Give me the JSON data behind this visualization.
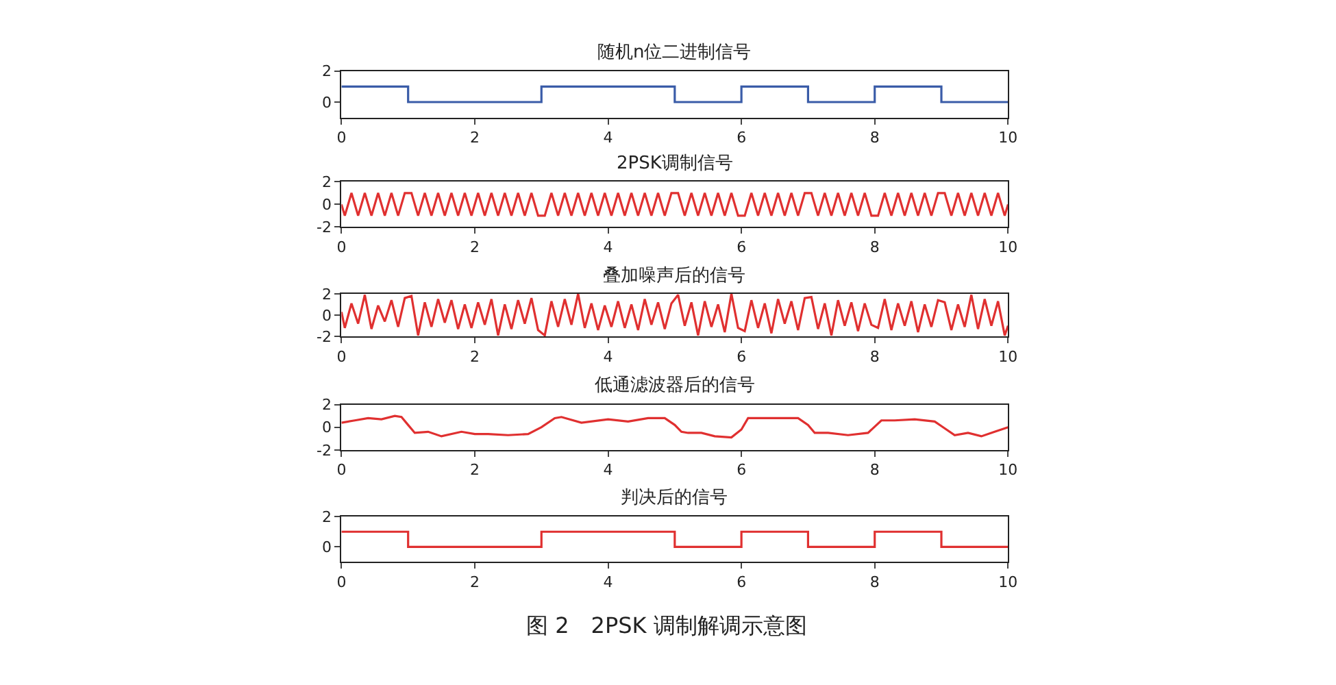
{
  "chart_data": [
    {
      "type": "step",
      "title": "随机n位二进制信号",
      "x": [
        0,
        1,
        2,
        3,
        4,
        5,
        6,
        7,
        8,
        9,
        10
      ],
      "series": [
        {
          "color": "#3a5ca8",
          "values": [
            1,
            0,
            0,
            1,
            1,
            0,
            1,
            0,
            1,
            0,
            0
          ]
        }
      ],
      "xlim": [
        0,
        10
      ],
      "xticks": [
        0,
        2,
        4,
        6,
        8,
        10
      ],
      "ylim": [
        -1,
        2
      ],
      "yticks": [
        0,
        2
      ]
    },
    {
      "type": "line",
      "title": "2PSK调制信号",
      "x": [
        0,
        0.05,
        0.15,
        0.25,
        0.35,
        0.45,
        0.55,
        0.65,
        0.75,
        0.85,
        0.95,
        1.05,
        1.15,
        1.25,
        1.35,
        1.45,
        1.55,
        1.65,
        1.75,
        1.85,
        1.95,
        2.05,
        2.15,
        2.25,
        2.35,
        2.45,
        2.55,
        2.65,
        2.75,
        2.85,
        2.95,
        3.05,
        3.15,
        3.25,
        3.35,
        3.45,
        3.55,
        3.65,
        3.75,
        3.85,
        3.95,
        4.05,
        4.15,
        4.25,
        4.35,
        4.45,
        4.55,
        4.65,
        4.75,
        4.85,
        4.95,
        5.05,
        5.15,
        5.25,
        5.35,
        5.45,
        5.55,
        5.65,
        5.75,
        5.85,
        5.95,
        6.05,
        6.15,
        6.25,
        6.35,
        6.45,
        6.55,
        6.65,
        6.75,
        6.85,
        6.95,
        7.05,
        7.15,
        7.25,
        7.35,
        7.45,
        7.55,
        7.65,
        7.75,
        7.85,
        7.95,
        8.05,
        8.15,
        8.25,
        8.35,
        8.45,
        8.55,
        8.65,
        8.75,
        8.85,
        8.95,
        9.05,
        9.15,
        9.25,
        9.35,
        9.45,
        9.55,
        9.65,
        9.75,
        9.85,
        9.95,
        10
      ],
      "series": [
        {
          "color": "#e03030",
          "values": [
            0,
            -1,
            1,
            -1,
            1,
            -1,
            1,
            -1,
            1,
            -1,
            1,
            1,
            -1,
            1,
            -1,
            1,
            -1,
            1,
            -1,
            1,
            -1,
            1,
            -1,
            1,
            -1,
            1,
            -1,
            1,
            -1,
            1,
            -1,
            -1,
            1,
            -1,
            1,
            -1,
            1,
            -1,
            1,
            -1,
            1,
            -1,
            1,
            -1,
            1,
            -1,
            1,
            -1,
            1,
            -1,
            1,
            1,
            -1,
            1,
            -1,
            1,
            -1,
            1,
            -1,
            1,
            -1,
            -1,
            1,
            -1,
            1,
            -1,
            1,
            -1,
            1,
            -1,
            1,
            1,
            -1,
            1,
            -1,
            1,
            -1,
            1,
            -1,
            1,
            -1,
            -1,
            1,
            -1,
            1,
            -1,
            1,
            -1,
            1,
            -1,
            1,
            1,
            -1,
            1,
            -1,
            1,
            -1,
            1,
            -1,
            1,
            -1,
            0
          ]
        }
      ],
      "xlim": [
        0,
        10
      ],
      "xticks": [
        0,
        2,
        4,
        6,
        8,
        10
      ],
      "ylim": [
        -2,
        2
      ],
      "yticks": [
        -2,
        0,
        2
      ]
    },
    {
      "type": "line",
      "title": "叠加噪声后的信号",
      "x": [
        0,
        0.05,
        0.15,
        0.25,
        0.35,
        0.45,
        0.55,
        0.65,
        0.75,
        0.85,
        0.95,
        1.05,
        1.15,
        1.25,
        1.35,
        1.45,
        1.55,
        1.65,
        1.75,
        1.85,
        1.95,
        2.05,
        2.15,
        2.25,
        2.35,
        2.45,
        2.55,
        2.65,
        2.75,
        2.85,
        2.95,
        3.05,
        3.15,
        3.25,
        3.35,
        3.45,
        3.55,
        3.65,
        3.75,
        3.85,
        3.95,
        4.05,
        4.15,
        4.25,
        4.35,
        4.45,
        4.55,
        4.65,
        4.75,
        4.85,
        4.95,
        5.05,
        5.15,
        5.25,
        5.35,
        5.45,
        5.55,
        5.65,
        5.75,
        5.85,
        5.95,
        6.05,
        6.15,
        6.25,
        6.35,
        6.45,
        6.55,
        6.65,
        6.75,
        6.85,
        6.95,
        7.05,
        7.15,
        7.25,
        7.35,
        7.45,
        7.55,
        7.65,
        7.75,
        7.85,
        7.95,
        8.05,
        8.15,
        8.25,
        8.35,
        8.45,
        8.55,
        8.65,
        8.75,
        8.85,
        8.95,
        9.05,
        9.15,
        9.25,
        9.35,
        9.45,
        9.55,
        9.65,
        9.75,
        9.85,
        9.95,
        10
      ],
      "series": [
        {
          "color": "#e03030",
          "values": [
            0.3,
            -1.2,
            1.1,
            -0.8,
            1.9,
            -1.3,
            0.9,
            -0.6,
            1.4,
            -1.1,
            1.6,
            1.8,
            -1.9,
            1.2,
            -1.1,
            1.5,
            -0.7,
            1.4,
            -1.3,
            1.0,
            -1.2,
            1.2,
            -0.9,
            1.5,
            -1.9,
            1.0,
            -1.3,
            1.4,
            -0.8,
            1.6,
            -1.4,
            -1.9,
            1.3,
            -1.1,
            1.5,
            -0.9,
            2.0,
            -1.2,
            1.1,
            -1.4,
            0.9,
            -1.1,
            1.3,
            -1.2,
            1.0,
            -1.4,
            1.5,
            -0.9,
            1.2,
            -1.3,
            1.1,
            1.9,
            -1.0,
            1.2,
            -1.9,
            1.3,
            -1.1,
            1.0,
            -1.6,
            2.0,
            -1.2,
            -1.5,
            1.4,
            -1.2,
            1.1,
            -1.7,
            1.5,
            -0.8,
            1.3,
            -1.4,
            1.6,
            1.7,
            -1.3,
            1.1,
            -1.9,
            1.4,
            -1.0,
            1.2,
            -1.5,
            1.1,
            -0.9,
            -1.2,
            1.5,
            -1.4,
            1.1,
            -1.0,
            1.3,
            -1.6,
            1.0,
            -1.1,
            1.4,
            1.2,
            -1.4,
            1.0,
            -1.1,
            1.9,
            -1.3,
            1.5,
            -1.0,
            1.3,
            -1.9,
            -1.0
          ]
        }
      ],
      "xlim": [
        0,
        10
      ],
      "xticks": [
        0,
        2,
        4,
        6,
        8,
        10
      ],
      "ylim": [
        -2,
        2
      ],
      "yticks": [
        -2,
        0,
        2
      ]
    },
    {
      "type": "line",
      "title": "低通滤波器后的信号",
      "x": [
        0,
        0.2,
        0.4,
        0.6,
        0.8,
        0.9,
        1.0,
        1.1,
        1.3,
        1.5,
        1.8,
        2.0,
        2.2,
        2.5,
        2.8,
        3.0,
        3.2,
        3.3,
        3.6,
        4.0,
        4.3,
        4.6,
        4.85,
        5.0,
        5.1,
        5.2,
        5.4,
        5.6,
        5.85,
        6.0,
        6.1,
        6.3,
        6.6,
        6.85,
        7.0,
        7.1,
        7.3,
        7.6,
        7.9,
        8.1,
        8.3,
        8.6,
        8.9,
        9.0,
        9.2,
        9.4,
        9.6,
        9.8,
        10
      ],
      "series": [
        {
          "color": "#e03030",
          "values": [
            0.4,
            0.6,
            0.8,
            0.7,
            1.0,
            0.9,
            0.2,
            -0.5,
            -0.4,
            -0.8,
            -0.4,
            -0.6,
            -0.6,
            -0.7,
            -0.6,
            0.0,
            0.8,
            0.9,
            0.4,
            0.7,
            0.5,
            0.8,
            0.8,
            0.2,
            -0.4,
            -0.5,
            -0.5,
            -0.8,
            -0.9,
            -0.2,
            0.8,
            0.8,
            0.8,
            0.8,
            0.2,
            -0.5,
            -0.5,
            -0.7,
            -0.5,
            0.6,
            0.6,
            0.7,
            0.5,
            0.1,
            -0.7,
            -0.5,
            -0.8,
            -0.4,
            0.0
          ]
        }
      ],
      "xlim": [
        0,
        10
      ],
      "xticks": [
        0,
        2,
        4,
        6,
        8,
        10
      ],
      "ylim": [
        -2,
        2
      ],
      "yticks": [
        -2,
        0,
        2
      ]
    },
    {
      "type": "step",
      "title": "判决后的信号",
      "x": [
        0,
        1,
        2,
        3,
        4,
        5,
        6,
        7,
        8,
        9,
        10
      ],
      "series": [
        {
          "color": "#e03030",
          "values": [
            1,
            0,
            0,
            1,
            1,
            0,
            1,
            0,
            1,
            0,
            0
          ]
        }
      ],
      "xlim": [
        0,
        10
      ],
      "xticks": [
        0,
        2,
        4,
        6,
        8,
        10
      ],
      "ylim": [
        -1,
        2
      ],
      "yticks": [
        0,
        2
      ],
      "annotations": [
        "图 2　2PSK 调制解调示意图"
      ]
    }
  ]
}
